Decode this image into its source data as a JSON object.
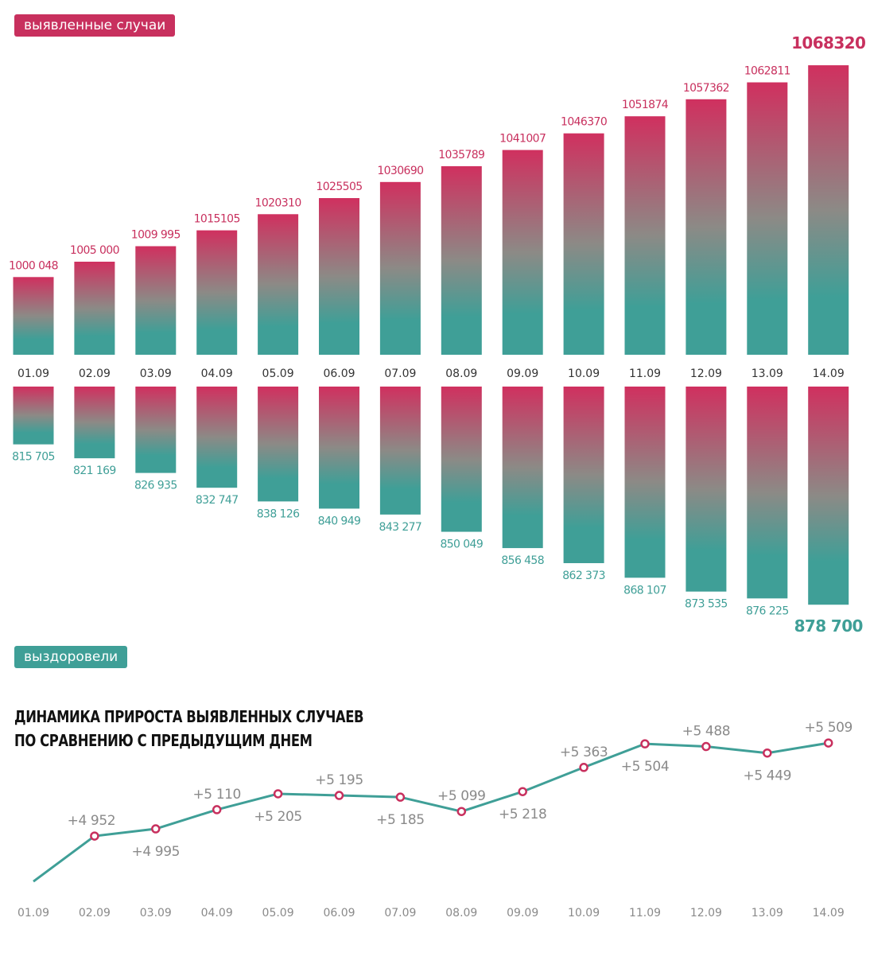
{
  "labels": {
    "cases_tag": "выявленные случаи",
    "recovered_tag": "выздоровели",
    "growth_title_line1": "ДИНАМИКА ПРИРОСТА ВЫЯВЛЕННЫХ СЛУЧАЕВ",
    "growth_title_line2": "ПО СРАВНЕНИЮ С ПРЕДЫДУЩИМ ДНЕМ"
  },
  "colors": {
    "accent_pink": "#c8305e",
    "accent_teal": "#3f9f97",
    "bar_top": "#d0305f",
    "bar_mid": "#8c8a86",
    "bar_bottom": "#3f9f97",
    "line": "#3f9f97",
    "marker": "#c8305e"
  },
  "chart_data": [
    {
      "type": "bar",
      "categories": [
        "01.09",
        "02.09",
        "03.09",
        "04.09",
        "05.09",
        "06.09",
        "07.09",
        "08.09",
        "09.09",
        "10.09",
        "11.09",
        "12.09",
        "13.09",
        "14.09"
      ],
      "values": [
        1000048,
        1005000,
        1009995,
        1015105,
        1020310,
        1025505,
        1030690,
        1035789,
        1041007,
        1046370,
        1051874,
        1057362,
        1062811,
        1068320
      ],
      "value_labels": [
        "1000 048",
        "1005 000",
        "1009 995",
        "1015105",
        "1020310",
        "1025505",
        "1030690",
        "1035789",
        "1041007",
        "1046370",
        "1051874",
        "1057362",
        "1062811",
        "1068320"
      ],
      "title": "выявленные случаи"
    },
    {
      "type": "bar",
      "categories": [
        "01.09",
        "02.09",
        "03.09",
        "04.09",
        "05.09",
        "06.09",
        "07.09",
        "08.09",
        "09.09",
        "10.09",
        "11.09",
        "12.09",
        "13.09",
        "14.09"
      ],
      "values": [
        815705,
        821169,
        826935,
        832747,
        838126,
        840949,
        843277,
        850049,
        856458,
        862373,
        868107,
        873535,
        876225,
        878700
      ],
      "value_labels": [
        "815 705",
        "821 169",
        "826 935",
        "832 747",
        "838 126",
        "840 949",
        "843 277",
        "850 049",
        "856 458",
        "862 373",
        "868 107",
        "873 535",
        "876 225",
        "878 700"
      ],
      "title": "выздоровели"
    },
    {
      "type": "line",
      "x": [
        "01.09",
        "02.09",
        "03.09",
        "04.09",
        "05.09",
        "06.09",
        "07.09",
        "08.09",
        "09.09",
        "10.09",
        "11.09",
        "12.09",
        "13.09",
        "14.09"
      ],
      "values": [
        null,
        4952,
        4995,
        5110,
        5205,
        5195,
        5185,
        5099,
        5218,
        5363,
        5504,
        5488,
        5449,
        5509
      ],
      "value_labels": [
        "",
        "+4 952",
        "+4 995",
        "+5 110",
        "+5 205",
        "+5 195",
        "+5 185",
        "+5 099",
        "+5 218",
        "+5 363",
        "+5 504",
        "+5 488",
        "+5 449",
        "+5 509"
      ],
      "title": "ДИНАМИКА ПРИРОСТА ВЫЯВЛЕННЫХ СЛУЧАЕВ ПО СРАВНЕНИЮ С ПРЕДЫДУЩИМ ДНЕМ"
    }
  ]
}
